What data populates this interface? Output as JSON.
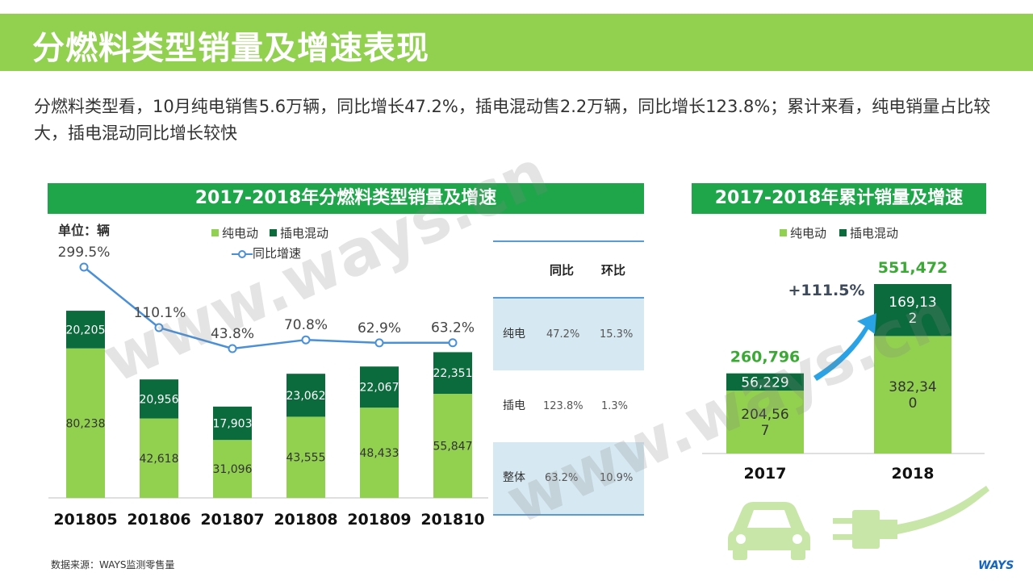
{
  "title": "分燃料类型销量及增速表现",
  "intro": "分燃料类型看，10月纯电销售5.6万辆，同比增长47.2%，插电混动售2.2万辆，同比增长123.8%；累计来看，纯电销量占比较大，插电混动同比增长较快",
  "left_banner": "2017-2018年分燃料类型销量及增速",
  "right_banner": "2017-2018年累计销量及增速",
  "unit_label": "单位：辆",
  "legend": {
    "bev": "纯电动",
    "phev": "插电混动",
    "growth": "同比增速"
  },
  "colors": {
    "bev": "#92d050",
    "phev": "#0c6b3d",
    "line": "#4a90d9",
    "banner": "#1fa64b"
  },
  "source": "数据来源：WAYS监测零售量",
  "logo": "WAYS",
  "watermark": "www.ways.cn",
  "chart_data": [
    {
      "type": "bar",
      "stacked": true,
      "title": "2017-2018年分燃料类型销量及增速",
      "categories": [
        "201805",
        "201806",
        "201807",
        "201808",
        "201809",
        "201810"
      ],
      "series": [
        {
          "name": "纯电动",
          "values": [
            80238,
            42618,
            31096,
            43555,
            48433,
            55847
          ],
          "labels": [
            "80,238",
            "42,618",
            "31,096",
            "43,555",
            "48,433",
            "55,847"
          ]
        },
        {
          "name": "插电混动",
          "values": [
            20205,
            20956,
            17903,
            23062,
            22067,
            22351
          ],
          "labels": [
            "20,205",
            "20,956",
            "17,903",
            "23,062",
            "22,067",
            "22,351"
          ]
        }
      ],
      "line": {
        "name": "同比增速",
        "values": [
          299.5,
          110.1,
          43.8,
          70.8,
          62.9,
          63.2
        ],
        "labels": [
          "299.5%",
          "110.1%",
          "43.8%",
          "70.8%",
          "62.9%",
          "63.2%"
        ]
      },
      "ylim": [
        0,
        120000
      ]
    },
    {
      "type": "table",
      "columns": [
        "",
        "同比",
        "环比"
      ],
      "rows": [
        [
          "纯电",
          "47.2%",
          "15.3%"
        ],
        [
          "插电",
          "123.8%",
          "1.3%"
        ],
        [
          "整体",
          "63.2%",
          "10.9%"
        ]
      ]
    },
    {
      "type": "bar",
      "stacked": true,
      "title": "2017-2018年累计销量及增速",
      "categories": [
        "2017",
        "2018"
      ],
      "series": [
        {
          "name": "纯电动",
          "values": [
            204567,
            382340
          ],
          "labels": [
            "204,56\n7",
            "382,34\n0"
          ]
        },
        {
          "name": "插电混动",
          "values": [
            56229,
            169132
          ],
          "labels": [
            "56,229",
            "169,13\n2"
          ]
        }
      ],
      "totals": [
        260796,
        551472
      ],
      "total_labels": [
        "260,796",
        "551,472"
      ],
      "growth_label": "+111.5%",
      "ylim": [
        0,
        600000
      ]
    }
  ]
}
